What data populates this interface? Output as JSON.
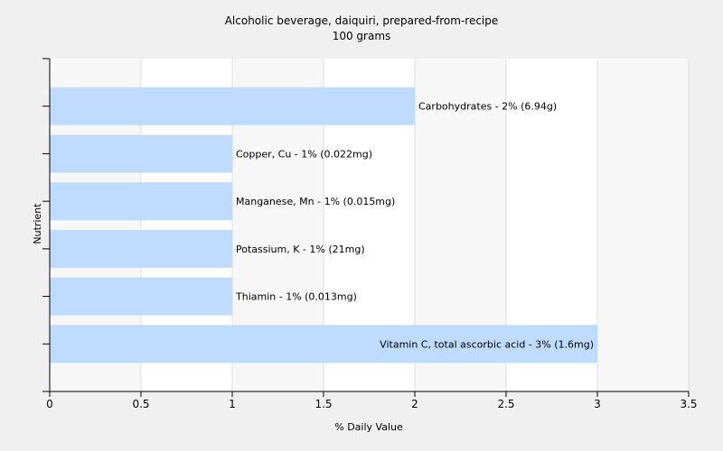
{
  "chart_data": {
    "type": "bar",
    "orientation": "horizontal",
    "title": "Alcoholic beverage, daiquiri, prepared-from-recipe",
    "subtitle": "100 grams",
    "xlabel": "% Daily Value",
    "ylabel": "Nutrient",
    "xlim": [
      0,
      3.5
    ],
    "xticks": [
      0,
      0.5,
      1,
      1.5,
      2,
      2.5,
      3,
      3.5
    ],
    "xtick_labels": [
      "0",
      "0.5",
      "1",
      "1.5",
      "2",
      "2.5",
      "3",
      "3.5"
    ],
    "grid": true,
    "bar_color": "#bfdbff",
    "categories": [
      "Carbohydrates",
      "Copper, Cu",
      "Manganese, Mn",
      "Potassium, K",
      "Thiamin",
      "Vitamin C, total ascorbic acid"
    ],
    "values": [
      2,
      1,
      1,
      1,
      1,
      3
    ],
    "bar_labels": [
      "Carbohydrates - 2% (6.94g)",
      "Copper, Cu - 1% (0.022mg)",
      "Manganese, Mn - 1% (0.015mg)",
      "Potassium, K - 1% (21mg)",
      "Thiamin - 1% (0.013mg)",
      "Vitamin C, total ascorbic acid - 3% (1.6mg)"
    ]
  }
}
